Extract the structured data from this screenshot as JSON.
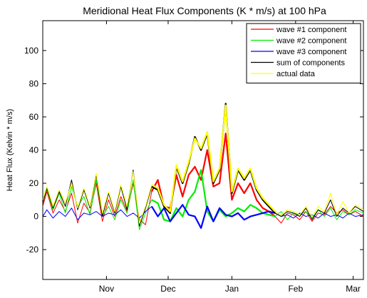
{
  "chart_data": {
    "type": "line",
    "title": "Meridional Heat Flux Components (K * m/s) at 100 hPa",
    "xlabel": "",
    "ylabel": "Heat Flux (Kelvin * m/s)",
    "xlim": [
      "Oct 15",
      "Mar 20"
    ],
    "ylim": [
      -38,
      118
    ],
    "yticks": [
      -20,
      0,
      20,
      40,
      60,
      80,
      100
    ],
    "xticks": [
      {
        "label": "Nov",
        "x": "Nov 15"
      },
      {
        "label": "Dec",
        "x": "Dec 15"
      },
      {
        "label": "Jan",
        "x": "Jan 15"
      },
      {
        "label": "Feb",
        "x": "Feb 15"
      },
      {
        "label": "Mar",
        "x": "Mar 15"
      }
    ],
    "grid": false,
    "legend_position": "top-right",
    "highlight_range": [
      "Dec 7",
      "Feb 5"
    ],
    "series": [
      {
        "name": "wave #1 component",
        "color": "#ff0000",
        "x": [
          "Oct 15",
          "Oct 17",
          "Oct 20",
          "Oct 23",
          "Oct 26",
          "Oct 29",
          "Nov 1",
          "Nov 4",
          "Nov 7",
          "Nov 10",
          "Nov 13",
          "Nov 16",
          "Nov 19",
          "Nov 22",
          "Nov 25",
          "Nov 28",
          "Dec 1",
          "Dec 4",
          "Dec 7",
          "Dec 10",
          "Dec 13",
          "Dec 16",
          "Dec 19",
          "Dec 22",
          "Dec 25",
          "Dec 28",
          "Dec 31",
          "Jan 3",
          "Jan 6",
          "Jan 9",
          "Jan 12",
          "Jan 15",
          "Jan 18",
          "Jan 21",
          "Jan 24",
          "Jan 27",
          "Jan 30",
          "Feb 2",
          "Feb 5",
          "Feb 8",
          "Feb 11",
          "Feb 14",
          "Feb 17",
          "Feb 20",
          "Feb 23",
          "Feb 26",
          "Mar 1",
          "Mar 4",
          "Mar 7",
          "Mar 10",
          "Mar 13",
          "Mar 16",
          "Mar 20"
        ],
        "values": [
          6,
          15,
          2,
          10,
          3,
          14,
          -4,
          8,
          2,
          20,
          -3,
          10,
          0,
          12,
          3,
          20,
          -2,
          -5,
          15,
          22,
          6,
          5,
          25,
          12,
          25,
          30,
          22,
          40,
          18,
          20,
          50,
          10,
          20,
          14,
          20,
          10,
          5,
          3,
          0,
          -4,
          2,
          1,
          -2,
          3,
          -3,
          2,
          1,
          6,
          2,
          4,
          1,
          3,
          0
        ]
      },
      {
        "name": "wave #2 component",
        "color": "#00ee00",
        "x": [
          "Oct 15",
          "Oct 17",
          "Oct 20",
          "Oct 23",
          "Oct 26",
          "Oct 29",
          "Nov 1",
          "Nov 4",
          "Nov 7",
          "Nov 10",
          "Nov 13",
          "Nov 16",
          "Nov 19",
          "Nov 22",
          "Nov 25",
          "Nov 28",
          "Dec 1",
          "Dec 4",
          "Dec 7",
          "Dec 10",
          "Dec 13",
          "Dec 16",
          "Dec 19",
          "Dec 22",
          "Dec 25",
          "Dec 28",
          "Dec 31",
          "Jan 3",
          "Jan 6",
          "Jan 9",
          "Jan 12",
          "Jan 15",
          "Jan 18",
          "Jan 21",
          "Jan 24",
          "Jan 27",
          "Jan 30",
          "Feb 2",
          "Feb 5",
          "Feb 8",
          "Feb 11",
          "Feb 14",
          "Feb 17",
          "Feb 20",
          "Feb 23",
          "Feb 26",
          "Mar 1",
          "Mar 4",
          "Mar 7",
          "Mar 10",
          "Mar 13",
          "Mar 16",
          "Mar 20"
        ],
        "values": [
          10,
          16,
          4,
          14,
          2,
          18,
          6,
          12,
          1,
          22,
          0,
          6,
          -2,
          10,
          2,
          22,
          -8,
          2,
          10,
          8,
          -2,
          -3,
          5,
          0,
          10,
          15,
          28,
          3,
          -3,
          4,
          0,
          2,
          5,
          3,
          7,
          5,
          2,
          1,
          0,
          3,
          -2,
          2,
          1,
          3,
          -1,
          4,
          0,
          5,
          -2,
          3,
          1,
          4,
          2
        ]
      },
      {
        "name": "wave #3 component",
        "color": "#0000ff",
        "x": [
          "Oct 15",
          "Oct 17",
          "Oct 20",
          "Oct 23",
          "Oct 26",
          "Oct 29",
          "Nov 1",
          "Nov 4",
          "Nov 7",
          "Nov 10",
          "Nov 13",
          "Nov 16",
          "Nov 19",
          "Nov 22",
          "Nov 25",
          "Nov 28",
          "Dec 1",
          "Dec 4",
          "Dec 7",
          "Dec 10",
          "Dec 13",
          "Dec 16",
          "Dec 19",
          "Dec 22",
          "Dec 25",
          "Dec 28",
          "Dec 31",
          "Jan 3",
          "Jan 6",
          "Jan 9",
          "Jan 12",
          "Jan 15",
          "Jan 18",
          "Jan 21",
          "Jan 24",
          "Jan 27",
          "Jan 30",
          "Feb 2",
          "Feb 5",
          "Feb 8",
          "Feb 11",
          "Feb 14",
          "Feb 17",
          "Feb 20",
          "Feb 23",
          "Feb 26",
          "Mar 1",
          "Mar 4",
          "Mar 7",
          "Mar 10",
          "Mar 13",
          "Mar 16",
          "Mar 20"
        ],
        "values": [
          0,
          4,
          -1,
          3,
          0,
          5,
          -2,
          2,
          1,
          3,
          0,
          2,
          1,
          4,
          0,
          2,
          -1,
          3,
          6,
          0,
          5,
          -3,
          2,
          7,
          1,
          0,
          -7,
          6,
          -3,
          5,
          1,
          0,
          2,
          -2,
          0,
          1,
          2,
          3,
          2,
          0,
          1,
          -1,
          2,
          0,
          1,
          -1,
          2,
          0,
          1,
          -1,
          2,
          0,
          1
        ]
      },
      {
        "name": "sum of components",
        "color": "#000000",
        "x": [
          "Oct 15",
          "Oct 17",
          "Oct 20",
          "Oct 23",
          "Oct 26",
          "Oct 29",
          "Nov 1",
          "Nov 4",
          "Nov 7",
          "Nov 10",
          "Nov 13",
          "Nov 16",
          "Nov 19",
          "Nov 22",
          "Nov 25",
          "Nov 28",
          "Dec 1",
          "Dec 4",
          "Dec 7",
          "Dec 10",
          "Dec 13",
          "Dec 16",
          "Dec 19",
          "Dec 22",
          "Dec 25",
          "Dec 28",
          "Dec 31",
          "Jan 3",
          "Jan 6",
          "Jan 9",
          "Jan 12",
          "Jan 15",
          "Jan 18",
          "Jan 21",
          "Jan 24",
          "Jan 27",
          "Jan 30",
          "Feb 2",
          "Feb 5",
          "Feb 8",
          "Feb 11",
          "Feb 14",
          "Feb 17",
          "Feb 20",
          "Feb 23",
          "Feb 26",
          "Mar 1",
          "Mar 4",
          "Mar 7",
          "Mar 10",
          "Mar 13",
          "Mar 16",
          "Mar 20"
        ],
        "values": [
          8,
          17,
          5,
          15,
          6,
          22,
          4,
          16,
          5,
          25,
          0,
          14,
          2,
          18,
          4,
          28,
          -6,
          5,
          18,
          16,
          6,
          2,
          30,
          20,
          32,
          48,
          40,
          50,
          20,
          28,
          68,
          14,
          28,
          22,
          28,
          16,
          10,
          6,
          2,
          0,
          3,
          2,
          0,
          5,
          -2,
          4,
          2,
          10,
          0,
          5,
          2,
          6,
          3
        ]
      },
      {
        "name": "actual data",
        "color": "#ffff00",
        "x": [
          "Oct 15",
          "Oct 17",
          "Oct 20",
          "Oct 23",
          "Oct 26",
          "Oct 29",
          "Nov 1",
          "Nov 4",
          "Nov 7",
          "Nov 10",
          "Nov 13",
          "Nov 16",
          "Nov 19",
          "Nov 22",
          "Nov 25",
          "Nov 28",
          "Dec 1",
          "Dec 4",
          "Dec 7",
          "Dec 10",
          "Dec 13",
          "Dec 16",
          "Dec 19",
          "Dec 22",
          "Dec 25",
          "Dec 28",
          "Dec 31",
          "Jan 3",
          "Jan 6",
          "Jan 9",
          "Jan 12",
          "Jan 15",
          "Jan 18",
          "Jan 21",
          "Jan 24",
          "Jan 27",
          "Jan 30",
          "Feb 2",
          "Feb 5",
          "Feb 8",
          "Feb 11",
          "Feb 14",
          "Feb 17",
          "Feb 20",
          "Feb 23",
          "Feb 26",
          "Mar 1",
          "Mar 4",
          "Mar 7",
          "Mar 10",
          "Mar 13",
          "Mar 16",
          "Mar 20"
        ],
        "values": [
          10,
          18,
          6,
          16,
          8,
          20,
          5,
          17,
          6,
          26,
          2,
          15,
          3,
          19,
          6,
          27,
          -4,
          6,
          19,
          17,
          7,
          3,
          31,
          21,
          33,
          47,
          41,
          51,
          21,
          29,
          67,
          15,
          29,
          23,
          29,
          17,
          11,
          7,
          3,
          1,
          4,
          3,
          1,
          6,
          0,
          6,
          3,
          14,
          1,
          9,
          2,
          7,
          4
        ]
      }
    ]
  }
}
